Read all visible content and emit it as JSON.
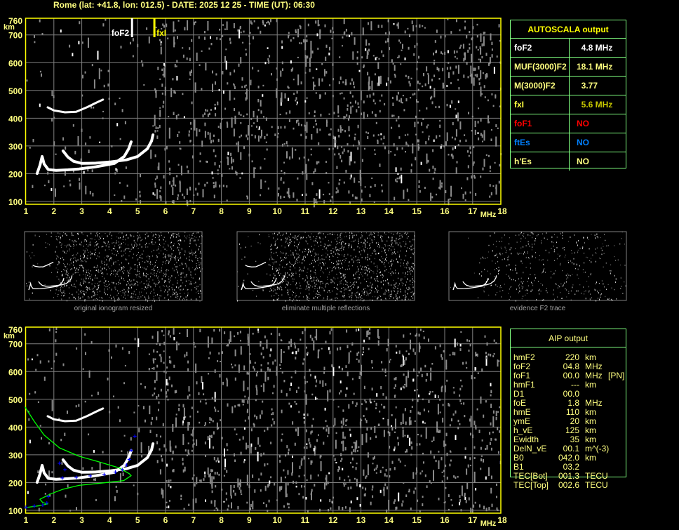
{
  "header": {
    "title": "Rome (lat: +41.8, lon: 012.5) - DATE: 2025 12 25 - TIME (UT): 06:30"
  },
  "colors": {
    "axis": "#ffff00",
    "grid": "#808080",
    "trace": "#ffffff",
    "profile": "#00ff00",
    "aip_points": "#0000ff",
    "table_border": "#80ff80",
    "foF1": "#ff0000",
    "ftEs": "#0080ff"
  },
  "autoscala": {
    "title": "AUTOSCALA output",
    "rows": [
      {
        "label": "foF2",
        "value": "  4.8 MHz",
        "label_color": "#ffffff",
        "value_color": "#ffffff"
      },
      {
        "label": "MUF(3000)F2",
        "value": "18.1 MHz",
        "label_color": "#ffff80",
        "value_color": "#ffff80"
      },
      {
        "label": "M(3000)F2",
        "value": "  3.77",
        "label_color": "#ffff80",
        "value_color": "#ffff80"
      },
      {
        "label": "fxI",
        "value": "  5.6 MHz",
        "label_color": "#ffff40",
        "value_color": "#c8c800"
      },
      {
        "label": "foF1",
        "value": "NO",
        "label_color": "#ff0000",
        "value_color": "#ff0000"
      },
      {
        "label": "ftEs",
        "value": "NO",
        "label_color": "#0080ff",
        "value_color": "#0080ff"
      },
      {
        "label": "h'Es",
        "value": "NO",
        "label_color": "#ffff80",
        "value_color": "#ffff80"
      }
    ]
  },
  "aip": {
    "title": "AIP output",
    "rows": [
      {
        "label": "hmF2",
        "value": "220",
        "unit": "km",
        "extra": ""
      },
      {
        "label": "foF2",
        "value": "04.8",
        "unit": "MHz",
        "extra": ""
      },
      {
        "label": "foF1",
        "value": "00.0",
        "unit": "MHz",
        "extra": "[PN]"
      },
      {
        "label": "hmF1",
        "value": "---",
        "unit": "km",
        "extra": ""
      },
      {
        "label": "D1",
        "value": "00.0",
        "unit": "",
        "extra": ""
      },
      {
        "label": "foE",
        "value": "1.8",
        "unit": "MHz",
        "extra": ""
      },
      {
        "label": "hmE",
        "value": "110",
        "unit": "km",
        "extra": ""
      },
      {
        "label": "ymE",
        "value": "20",
        "unit": "km",
        "extra": ""
      },
      {
        "label": "h_vE",
        "value": "125",
        "unit": "km",
        "extra": ""
      },
      {
        "label": "Ewidth",
        "value": "35",
        "unit": "km",
        "extra": ""
      },
      {
        "label": "DelN_vE",
        "value": "00.1",
        "unit": "m^(-3)",
        "extra": ""
      },
      {
        "label": "B0",
        "value": "042.0",
        "unit": "km",
        "extra": ""
      },
      {
        "label": "B1",
        "value": "03.2",
        "unit": "",
        "extra": ""
      },
      {
        "label": "TEC[Bot]",
        "value": "001.3",
        "unit": "TECU",
        "extra": ""
      },
      {
        "label": "TEC[Top]",
        "value": "002.6",
        "unit": "TECU",
        "extra": ""
      }
    ]
  },
  "thumbnails": [
    {
      "caption": "original ionogram resized"
    },
    {
      "caption": "eliminate multiple reflections"
    },
    {
      "caption": "evidence F2 trace"
    }
  ],
  "chart_data": [
    {
      "type": "scatter",
      "xlabel": "MHz",
      "ylabel": "km",
      "xlim": [
        1,
        18
      ],
      "ylim": [
        100,
        760
      ],
      "xticks": [
        "1",
        "2",
        "3",
        "4",
        "5",
        "6",
        "7",
        "8",
        "9",
        "10",
        "11",
        "12",
        "13",
        "14",
        "15",
        "16",
        "17",
        "18"
      ],
      "yticks": [
        "760",
        "700",
        "600",
        "500",
        "400",
        "300",
        "200",
        "100"
      ],
      "grid": true,
      "markers": [
        {
          "label": "foF2",
          "freq": 4.8
        },
        {
          "label": "fxI",
          "freq": 5.6
        }
      ],
      "traces": {
        "o_trace": [
          [
            1.4,
            201
          ],
          [
            1.5,
            230
          ],
          [
            1.58,
            262
          ],
          [
            1.65,
            235
          ],
          [
            1.8,
            215
          ],
          [
            2.08,
            212
          ],
          [
            2.5,
            214
          ],
          [
            2.9,
            217
          ],
          [
            3.5,
            225
          ],
          [
            4.17,
            237
          ],
          [
            4.52,
            262
          ],
          [
            4.68,
            290
          ],
          [
            4.77,
            315
          ]
        ],
        "x_trace": [
          [
            2.33,
            282
          ],
          [
            2.5,
            260
          ],
          [
            2.7,
            245
          ],
          [
            3.0,
            237
          ],
          [
            3.5,
            238
          ],
          [
            4.0,
            242
          ],
          [
            4.6,
            250
          ],
          [
            5.0,
            262
          ],
          [
            5.35,
            290
          ],
          [
            5.5,
            318
          ],
          [
            5.55,
            340
          ]
        ],
        "second_hop": [
          [
            1.78,
            439
          ],
          [
            2.0,
            428
          ],
          [
            2.4,
            421
          ],
          [
            2.8,
            423
          ],
          [
            3.2,
            440
          ],
          [
            3.5,
            455
          ],
          [
            3.76,
            467
          ]
        ]
      }
    },
    {
      "type": "scatter",
      "xlabel": "MHz",
      "ylabel": "km",
      "xlim": [
        1,
        18
      ],
      "ylim": [
        100,
        760
      ],
      "xticks": [
        "1",
        "2",
        "3",
        "4",
        "5",
        "6",
        "7",
        "8",
        "9",
        "10",
        "11",
        "12",
        "13",
        "14",
        "15",
        "16",
        "17",
        "18"
      ],
      "yticks": [
        "760",
        "700",
        "600",
        "500",
        "400",
        "300",
        "200",
        "100"
      ],
      "grid": true,
      "traces": {
        "o_trace": [
          [
            1.4,
            201
          ],
          [
            1.5,
            230
          ],
          [
            1.58,
            262
          ],
          [
            1.65,
            235
          ],
          [
            1.8,
            215
          ],
          [
            2.08,
            212
          ],
          [
            2.5,
            214
          ],
          [
            2.9,
            217
          ],
          [
            3.5,
            225
          ],
          [
            4.17,
            237
          ],
          [
            4.52,
            262
          ],
          [
            4.68,
            290
          ],
          [
            4.77,
            315
          ]
        ],
        "x_trace": [
          [
            2.33,
            282
          ],
          [
            2.5,
            260
          ],
          [
            2.7,
            245
          ],
          [
            3.0,
            237
          ],
          [
            3.5,
            238
          ],
          [
            4.0,
            242
          ],
          [
            4.6,
            250
          ],
          [
            5.0,
            262
          ],
          [
            5.35,
            290
          ],
          [
            5.5,
            318
          ],
          [
            5.55,
            340
          ]
        ],
        "second_hop": [
          [
            1.78,
            439
          ],
          [
            2.0,
            428
          ],
          [
            2.4,
            421
          ],
          [
            2.8,
            423
          ],
          [
            3.2,
            440
          ],
          [
            3.5,
            455
          ],
          [
            3.76,
            467
          ]
        ]
      },
      "aip_points": [
        [
          1.0,
          110
        ],
        [
          1.3,
          114
        ],
        [
          1.6,
          118
        ],
        [
          1.75,
          125
        ],
        [
          2.3,
          215
        ],
        [
          2.8,
          218
        ],
        [
          3.3,
          222
        ],
        [
          3.8,
          228
        ],
        [
          4.2,
          236
        ],
        [
          4.45,
          246
        ],
        [
          4.6,
          262
        ],
        [
          4.7,
          282
        ],
        [
          4.77,
          315
        ],
        [
          2.2,
          268
        ],
        [
          2.4,
          246
        ],
        [
          1.8,
          148
        ],
        [
          4.9,
          365
        ]
      ],
      "profile": [
        [
          0.97,
          472
        ],
        [
          1.3,
          420
        ],
        [
          1.65,
          371
        ],
        [
          2.2,
          325
        ],
        [
          2.9,
          295
        ],
        [
          3.6,
          275
        ],
        [
          4.34,
          253
        ],
        [
          4.7,
          232
        ],
        [
          4.77,
          225
        ],
        [
          4.5,
          207
        ],
        [
          3.7,
          198
        ],
        [
          2.9,
          190
        ],
        [
          2.3,
          175
        ],
        [
          1.9,
          160
        ],
        [
          1.5,
          140
        ],
        [
          1.6,
          128
        ],
        [
          1.78,
          123
        ],
        [
          1.5,
          117
        ],
        [
          1.0,
          110
        ]
      ]
    }
  ]
}
